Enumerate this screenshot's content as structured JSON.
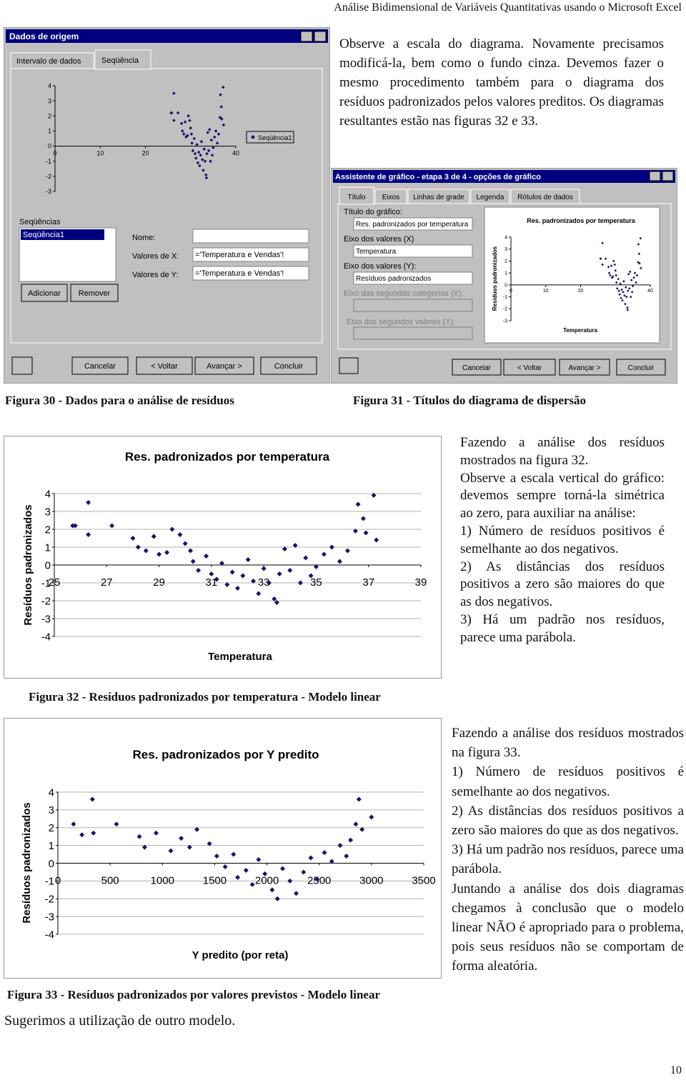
{
  "header": "Análise Bidimensional de Variáveis Quantitativas usando o Microsoft Excel",
  "paragraph_1": "Observe a escala do diagrama. Novamente precisamos modificá-la, bem como o fundo cinza. Devemos fazer o mesmo procedimento também para o diagrama dos resíduos padronizados pelos valores preditos. Os diagramas resultantes estão nas figuras 32 e 33.",
  "figure_30": {
    "window_title": "Dados de origem",
    "tabs": [
      "Intervalo de dados",
      "Seqüência"
    ],
    "series_label": "Seqüências",
    "series_item": "Seqüência1",
    "name_label": "Nome:",
    "x_label": "Valores de X:",
    "y_label": "Valores de Y:",
    "x_value": "='Temperatura e Vendas'!",
    "y_value": "='Temperatura e Vendas'!",
    "add": "Adicionar",
    "remove": "Remover",
    "buttons": [
      "Cancelar",
      "< Voltar",
      "Avançar >",
      "Concluir"
    ],
    "preview": {
      "legend": "Seqüência1",
      "xlim": [
        0,
        40
      ],
      "xticks": [
        0,
        10,
        20,
        40
      ],
      "ylim": [
        -3,
        4
      ],
      "yticks": [
        4,
        3,
        2,
        1,
        0,
        -1,
        -2,
        -3
      ]
    },
    "caption": "Figura 30 - Dados para o análise de resíduos"
  },
  "figure_31": {
    "window_title": "Assistente de gráfico - etapa 3 de 4 - opções de gráfico",
    "tabs": [
      "Título",
      "Eixos",
      "Linhas de grade",
      "Legenda",
      "Rótulos de dados"
    ],
    "chart_title_label": "Título do gráfico:",
    "chart_title_value": "Res. padronizados por temperatura",
    "x_axis_label": "Eixo dos valores (X)",
    "x_axis_value": "Temperatura",
    "y_axis_label": "Eixo dos valores (Y):",
    "y_axis_value": "Resíduos padronizados",
    "x2_axis_label": "Eixo das segundas categorias (X):",
    "y2_axis_label": "Eixo dos segundos valores (Y):",
    "buttons": [
      "Cancelar",
      "< Voltar",
      "Avançar >",
      "Concluir"
    ],
    "preview": {
      "title": "Res. padronizados por temperatura",
      "x_label": "Temperatura",
      "y_label": "Resíduos padronizados",
      "xlim": [
        0,
        40
      ],
      "xticks": [
        0,
        10,
        20,
        40
      ],
      "ylim": [
        -3,
        4
      ],
      "yticks": [
        4,
        3,
        2,
        1,
        0,
        -1,
        -2,
        -3
      ]
    },
    "caption": "Figura 31 - Títulos do diagrama de dispersão"
  },
  "chart_data": [
    {
      "type": "scatter",
      "title": "Res. padronizados por temperatura",
      "x_label": "Temperatura",
      "y_label": "Resíduos padronizados",
      "x": [
        25.7,
        25.8,
        26.3,
        26.3,
        27.2,
        28.0,
        28.2,
        28.5,
        28.8,
        29.0,
        29.3,
        29.5,
        29.8,
        30.0,
        30.2,
        30.3,
        30.5,
        30.8,
        31.0,
        31.2,
        31.4,
        31.6,
        31.8,
        32.0,
        32.2,
        32.4,
        32.6,
        32.8,
        33.0,
        33.2,
        33.4,
        33.5,
        33.6,
        33.8,
        34.0,
        34.2,
        34.4,
        34.6,
        34.8,
        35.0,
        35.3,
        35.6,
        35.9,
        36.2,
        36.5,
        36.6,
        36.8,
        36.9,
        37.2,
        37.3
      ],
      "y": [
        2.2,
        2.2,
        3.5,
        1.7,
        2.2,
        1.5,
        1.0,
        0.8,
        1.6,
        0.6,
        0.7,
        2.0,
        1.7,
        1.2,
        0.8,
        0.2,
        -0.3,
        0.5,
        -0.5,
        -0.8,
        0.1,
        -1.1,
        -0.4,
        -1.3,
        -0.6,
        0.3,
        -0.9,
        -1.6,
        -0.2,
        -1.0,
        -1.9,
        -2.1,
        -0.5,
        0.9,
        -0.3,
        1.1,
        -1.0,
        0.4,
        -0.6,
        -0.1,
        0.6,
        1.0,
        0.2,
        0.8,
        1.9,
        3.4,
        2.6,
        1.8,
        3.9,
        1.4
      ],
      "xlim": [
        25,
        39
      ],
      "xticks": [
        25,
        27,
        29,
        31,
        33,
        35,
        37,
        39
      ],
      "ylim": [
        -4,
        4
      ],
      "yticks": [
        4,
        3,
        2,
        1,
        0,
        -1,
        -2,
        -3,
        -4
      ],
      "color": "#14146e",
      "grid": true,
      "caption": "Figura 32 - Resíduos padronizados por temperatura - Modelo linear"
    },
    {
      "type": "scatter",
      "title": "Res. padronizados por Y predito",
      "x_label": "Y predito (por reta)",
      "y_label": "Resíduos padronizados",
      "x": [
        150,
        230,
        330,
        340,
        560,
        780,
        830,
        940,
        1080,
        1180,
        1260,
        1330,
        1450,
        1520,
        1600,
        1680,
        1720,
        1800,
        1860,
        1920,
        1980,
        2050,
        2100,
        2150,
        2220,
        2280,
        2350,
        2420,
        2480,
        2550,
        2620,
        2700,
        2760,
        2800,
        2850,
        2880,
        2910,
        3000
      ],
      "y": [
        2.2,
        1.6,
        3.6,
        1.7,
        2.2,
        1.5,
        0.9,
        1.7,
        0.7,
        1.4,
        0.9,
        1.9,
        1.1,
        0.4,
        -0.2,
        0.5,
        -0.8,
        -0.4,
        -1.2,
        0.2,
        -0.6,
        -1.5,
        -2.0,
        -0.3,
        -1.0,
        -1.7,
        -0.5,
        0.3,
        -0.9,
        0.6,
        0.1,
        1.0,
        0.4,
        1.3,
        2.2,
        3.6,
        1.9,
        2.6
      ],
      "xlim": [
        0,
        3500
      ],
      "xticks": [
        0,
        500,
        1000,
        1500,
        2000,
        2500,
        3000,
        3500
      ],
      "ylim": [
        -4,
        4
      ],
      "yticks": [
        4,
        3,
        2,
        1,
        0,
        -1,
        -2,
        -3,
        -4
      ],
      "color": "#14146e",
      "grid": true,
      "caption": "Figura 33 - Resíduos padronizados por valores previstos - Modelo linear"
    }
  ],
  "paragraph_2": [
    "Fazendo a análise dos resíduos mostrados na figura 32.",
    "Observe a escala vertical do gráfico: devemos sempre torná-la simétrica ao zero, para auxiliar na análise:",
    "1) Número de resíduos positivos é semelhante ao dos negativos.",
    "2) As distâncias dos resíduos positivos a zero são maiores do que as dos negativos.",
    "3) Há um padrão nos resíduos, parece uma parábola."
  ],
  "paragraph_3": [
    "Fazendo a análise dos resíduos mostrados na figura 33.",
    "1) Número de resíduos positivos é semelhante ao dos negativos.",
    "2) As distâncias dos resíduos positivos a zero são maiores do que as dos negativos.",
    "3) Há um padrão nos resíduos, parece uma parábola.",
    "Juntando a análise dos dois diagramas chegamos à conclusão que o modelo linear NÃO é apropriado para o problema, pois seus resíduos não se comportam de forma aleatória."
  ],
  "closing": "Sugerimos a utilização de outro modelo.",
  "page_number": "10"
}
